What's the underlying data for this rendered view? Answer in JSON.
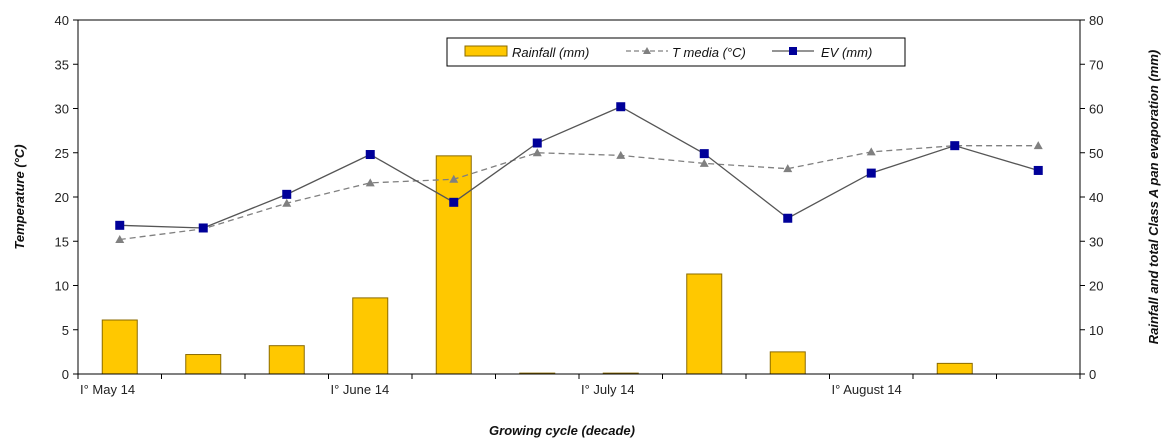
{
  "chart_data": {
    "type": "bar",
    "categories": [
      "I° May  14",
      "",
      "",
      "I° June  14",
      "",
      "",
      "I° July 14",
      "",
      "",
      "I° August  14",
      "",
      ""
    ],
    "series": [
      {
        "name": "Rainfall (mm)",
        "type": "bar",
        "axis": "right",
        "values": [
          12.2,
          4.4,
          6.4,
          17.2,
          49.3,
          0.2,
          0.2,
          22.6,
          5.0,
          0,
          2.4,
          0
        ]
      },
      {
        "name": "T media (°C)",
        "type": "line",
        "axis": "left",
        "values": [
          15.2,
          16.4,
          19.3,
          21.6,
          22.0,
          25.0,
          24.7,
          23.8,
          23.2,
          25.1,
          25.8,
          25.8
        ]
      },
      {
        "name": "EV (mm)",
        "type": "line",
        "axis": "right",
        "values": [
          33.6,
          33.0,
          40.6,
          49.6,
          38.8,
          52.2,
          60.4,
          49.8,
          35.2,
          45.4,
          51.6,
          46.0
        ]
      }
    ],
    "ylabel": "Temperature  (°C)",
    "y2label": "Rainfall and total Class A pan evaporation  (mm)",
    "xlabel": "Growing cycle  (decade)",
    "ylim": [
      0,
      40
    ],
    "y2lim": [
      0,
      80
    ],
    "yticks": [
      "0",
      "5",
      "10",
      "15",
      "20",
      "25",
      "30",
      "35",
      "40"
    ],
    "y2ticks": [
      "0",
      "10",
      "20",
      "30",
      "40",
      "50",
      "60",
      "70",
      "80"
    ],
    "grid": false,
    "legend_position": "top-center",
    "colors": {
      "rainfall": "#FFC800",
      "rainfall_edge": "#8A6A00",
      "tmedia": "#808080",
      "ev": "#000099",
      "ev_line": "#555555"
    }
  }
}
